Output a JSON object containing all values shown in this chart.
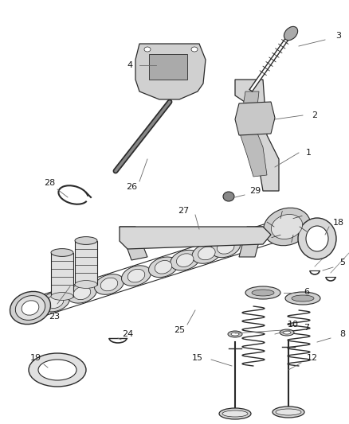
{
  "background_color": "#ffffff",
  "fig_width": 4.38,
  "fig_height": 5.33,
  "dpi": 100,
  "image_b64": ""
}
